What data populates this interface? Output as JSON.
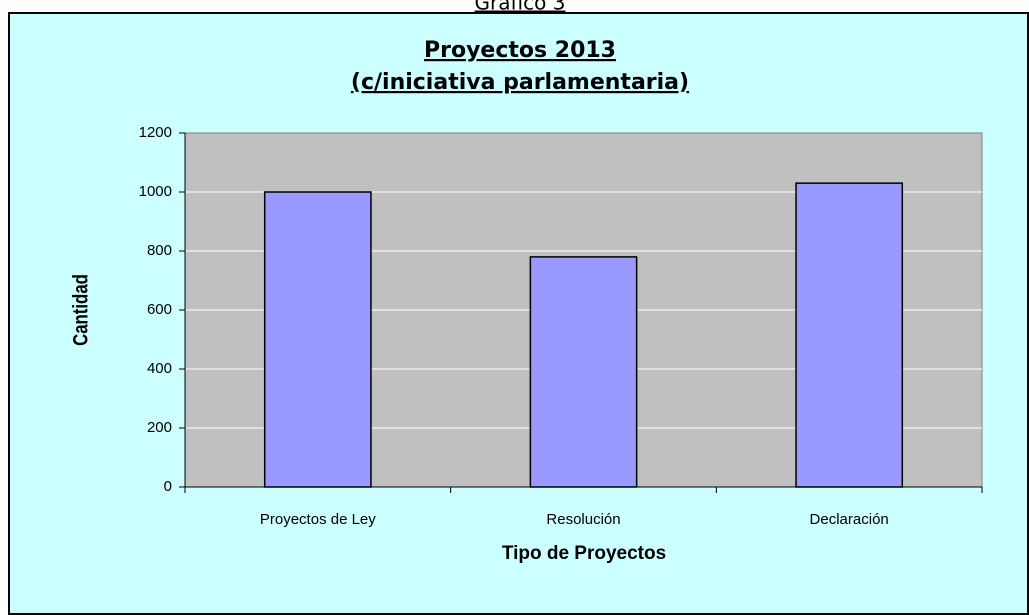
{
  "caption": "Gráfico 3",
  "chart_data": {
    "type": "bar",
    "title": "Proyectos 2013",
    "subtitle": "(c/iniciativa parlamentaria)",
    "x_label": "Tipo de Proyectos",
    "y_label": "Cantidad",
    "categories": [
      "Proyectos de Ley",
      "Resolución",
      "Declaración"
    ],
    "values": [
      1000,
      780,
      1030
    ],
    "color": "#9999ff",
    "ylim": [
      0,
      1200
    ],
    "yticks": [
      0,
      200,
      400,
      600,
      800,
      1000,
      1200
    ],
    "grid": true
  }
}
